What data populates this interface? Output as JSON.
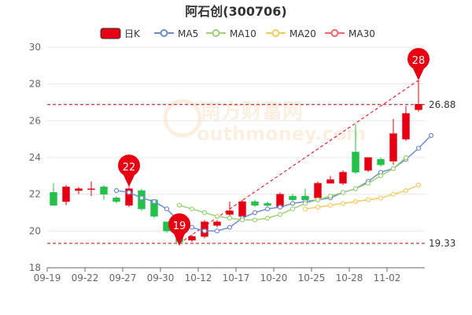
{
  "title": "阿石创(300706)",
  "watermark": {
    "main": "南方财富网",
    "sub": "outhmoney.com"
  },
  "chart_data": {
    "type": "candlestick",
    "title": "阿石创(300706)",
    "legend": {
      "placement": "top-center",
      "items": [
        {
          "name": "日K",
          "color": "#e60012"
        },
        {
          "name": "MA5",
          "color": "#6d8bd0"
        },
        {
          "name": "MA10",
          "color": "#9cd174"
        },
        {
          "name": "MA20",
          "color": "#f3cb65"
        },
        {
          "name": "MA30",
          "color": "#ee6666"
        }
      ]
    },
    "ylim": [
      18,
      30
    ],
    "yticks": [
      18,
      20,
      22,
      24,
      26,
      28,
      30
    ],
    "grid": true,
    "xtick_labels": [
      {
        "label": "09-19",
        "index": 0
      },
      {
        "label": "09-22",
        "index": 3
      },
      {
        "label": "09-27",
        "index": 6
      },
      {
        "label": "09-30",
        "index": 9
      },
      {
        "label": "10-12",
        "index": 12
      },
      {
        "label": "10-17",
        "index": 15
      },
      {
        "label": "10-20",
        "index": 18
      },
      {
        "label": "10-25",
        "index": 21
      },
      {
        "label": "10-28",
        "index": 24
      },
      {
        "label": "11-02",
        "index": 27
      }
    ],
    "up_color": "#e60012",
    "down_color": "#22c24a",
    "candles": [
      {
        "o": 22.1,
        "c": 21.4,
        "h": 22.6,
        "l": 21.4
      },
      {
        "o": 21.6,
        "c": 22.4,
        "h": 22.5,
        "l": 21.4
      },
      {
        "o": 22.2,
        "c": 22.3,
        "h": 22.4,
        "l": 22.0
      },
      {
        "o": 22.3,
        "c": 22.3,
        "h": 22.7,
        "l": 21.9
      },
      {
        "o": 22.4,
        "c": 22.0,
        "h": 22.5,
        "l": 21.7
      },
      {
        "o": 21.8,
        "c": 21.6,
        "h": 21.9,
        "l": 21.5
      },
      {
        "o": 21.4,
        "c": 22.3,
        "h": 22.4,
        "l": 21.3
      },
      {
        "o": 22.2,
        "c": 21.2,
        "h": 22.3,
        "l": 21.1
      },
      {
        "o": 21.7,
        "c": 20.8,
        "h": 21.7,
        "l": 20.7
      },
      {
        "o": 20.5,
        "c": 20.0,
        "h": 20.5,
        "l": 19.9
      },
      {
        "o": 19.9,
        "c": 19.4,
        "h": 20.0,
        "l": 19.2
      },
      {
        "o": 19.5,
        "c": 19.7,
        "h": 19.8,
        "l": 19.4
      },
      {
        "o": 19.7,
        "c": 20.5,
        "h": 20.6,
        "l": 19.6
      },
      {
        "o": 20.3,
        "c": 20.5,
        "h": 20.6,
        "l": 20.2
      },
      {
        "o": 20.9,
        "c": 21.1,
        "h": 21.6,
        "l": 20.8
      },
      {
        "o": 20.8,
        "c": 21.6,
        "h": 21.7,
        "l": 20.6
      },
      {
        "o": 21.6,
        "c": 21.4,
        "h": 21.7,
        "l": 21.3
      },
      {
        "o": 21.5,
        "c": 21.4,
        "h": 21.6,
        "l": 21.2
      },
      {
        "o": 21.3,
        "c": 22.0,
        "h": 22.1,
        "l": 21.2
      },
      {
        "o": 21.9,
        "c": 21.7,
        "h": 22.0,
        "l": 21.6
      },
      {
        "o": 21.9,
        "c": 21.7,
        "h": 22.3,
        "l": 21.6
      },
      {
        "o": 21.8,
        "c": 22.6,
        "h": 22.7,
        "l": 21.7
      },
      {
        "o": 22.6,
        "c": 22.8,
        "h": 23.0,
        "l": 22.6
      },
      {
        "o": 22.6,
        "c": 23.2,
        "h": 23.3,
        "l": 22.5
      },
      {
        "o": 24.3,
        "c": 23.2,
        "h": 25.8,
        "l": 23.1
      },
      {
        "o": 23.3,
        "c": 24.0,
        "h": 24.0,
        "l": 23.2
      },
      {
        "o": 23.9,
        "c": 23.6,
        "h": 24.0,
        "l": 23.5
      },
      {
        "o": 23.8,
        "c": 25.3,
        "h": 26.1,
        "l": 23.6
      },
      {
        "o": 25.0,
        "c": 26.4,
        "h": 26.8,
        "l": 24.9
      },
      {
        "o": 26.6,
        "c": 26.9,
        "h": 28.2,
        "l": 26.5
      }
    ],
    "series": [
      {
        "name": "MA5",
        "color": "#6d8bd0",
        "start": 5,
        "values": [
          22.2,
          22.1,
          21.8,
          21.6,
          21.2,
          20.5,
          20.2,
          20.0,
          20.0,
          20.2,
          20.7,
          21.0,
          21.2,
          21.3,
          21.5,
          21.6,
          21.7,
          21.8,
          22.1,
          22.3,
          22.7,
          23.2,
          23.4,
          23.9,
          24.5,
          25.2
        ]
      },
      {
        "name": "MA10",
        "color": "#9cd174",
        "start": 10,
        "values": [
          21.4,
          21.2,
          21.0,
          20.8,
          20.7,
          20.6,
          20.6,
          20.7,
          20.9,
          21.2,
          21.5,
          21.7,
          21.9,
          22.1,
          22.3,
          22.6,
          23.0,
          23.4,
          24.0
        ]
      },
      {
        "name": "MA20",
        "color": "#f3cb65",
        "start": 20,
        "values": [
          21.2,
          21.3,
          21.4,
          21.5,
          21.6,
          21.7,
          21.8,
          22.0,
          22.2,
          22.5
        ]
      }
    ],
    "markers": [
      {
        "value": "22",
        "index": 6,
        "at": "high"
      },
      {
        "value": "19",
        "index": 10,
        "at": "low"
      },
      {
        "value": "28",
        "index": 29,
        "at": "high"
      }
    ],
    "hlines": [
      {
        "value": 26.88,
        "label": "26.88"
      },
      {
        "value": 19.33,
        "label": "19.33"
      }
    ],
    "trend_line": {
      "from_index": 10,
      "from_value": 19.33,
      "to_index": 29,
      "to_value": 28.2
    }
  }
}
